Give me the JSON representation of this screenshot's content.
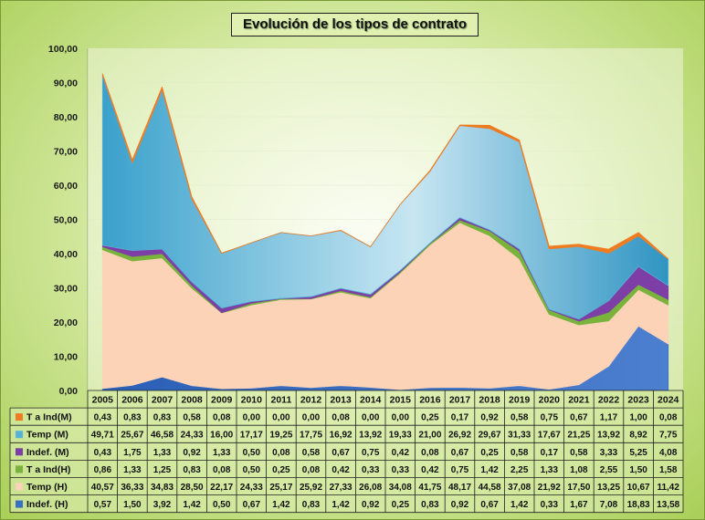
{
  "chart_data": {
    "type": "area",
    "stacked": true,
    "title": "Evolución de los tipos de contrato",
    "ylim": [
      0,
      100
    ],
    "y_ticks": [
      "0,00",
      "10,00",
      "20,00",
      "30,00",
      "40,00",
      "50,00",
      "60,00",
      "70,00",
      "80,00",
      "90,00",
      "100,00"
    ],
    "categories": [
      "2005",
      "2006",
      "2007",
      "2008",
      "2009",
      "2010",
      "2011",
      "2012",
      "2013",
      "2014",
      "2015",
      "2016",
      "2017",
      "2018",
      "2019",
      "2020",
      "2021",
      "2022",
      "2023",
      "2024"
    ],
    "series": [
      {
        "name": "Indef. (H)",
        "color": "#3a6fc4",
        "values": [
          0.57,
          1.5,
          3.92,
          1.42,
          0.5,
          0.67,
          1.42,
          0.83,
          1.42,
          0.92,
          0.25,
          0.83,
          0.92,
          0.67,
          1.42,
          0.33,
          1.67,
          7.08,
          18.83,
          13.58
        ],
        "labels": [
          "0,57",
          "1,50",
          "3,92",
          "1,42",
          "0,50",
          "0,67",
          "1,42",
          "0,83",
          "1,42",
          "0,92",
          "0,25",
          "0,83",
          "0,92",
          "0,67",
          "1,42",
          "0,33",
          "1,67",
          "7,08",
          "18,83",
          "13,58"
        ]
      },
      {
        "name": "Temp (H)",
        "color": "#fcd3b6",
        "values": [
          40.57,
          36.33,
          34.83,
          28.5,
          22.17,
          24.33,
          25.17,
          25.92,
          27.33,
          26.08,
          34.08,
          41.75,
          48.17,
          44.58,
          37.08,
          21.92,
          17.5,
          13.25,
          10.67,
          11.42
        ],
        "labels": [
          "40,57",
          "36,33",
          "34,83",
          "28,50",
          "22,17",
          "24,33",
          "25,17",
          "25,92",
          "27,33",
          "26,08",
          "34,08",
          "41,75",
          "48,17",
          "44,58",
          "37,08",
          "21,92",
          "17,50",
          "13,25",
          "10,67",
          "11,42"
        ]
      },
      {
        "name": "T a Ind(H)",
        "color": "#7ab33c",
        "values": [
          0.86,
          1.33,
          1.25,
          0.83,
          0.08,
          0.5,
          0.25,
          0.08,
          0.42,
          0.33,
          0.33,
          0.42,
          0.75,
          1.42,
          2.25,
          1.33,
          1.08,
          2.55,
          1.5,
          1.58
        ],
        "labels": [
          "0,86",
          "1,33",
          "1,25",
          "0,83",
          "0,08",
          "0,50",
          "0,25",
          "0,08",
          "0,42",
          "0,33",
          "0,33",
          "0,42",
          "0,75",
          "1,42",
          "2,25",
          "1,33",
          "1,08",
          "2,55",
          "1,50",
          "1,58"
        ]
      },
      {
        "name": "Indef. (M)",
        "color": "#7d3fa6",
        "values": [
          0.43,
          1.75,
          1.33,
          0.92,
          1.33,
          0.5,
          0.08,
          0.58,
          0.67,
          0.75,
          0.42,
          0.08,
          0.67,
          0.25,
          0.58,
          0.17,
          0.58,
          3.33,
          5.25,
          4.08
        ],
        "labels": [
          "0,43",
          "1,75",
          "1,33",
          "0,92",
          "1,33",
          "0,50",
          "0,08",
          "0,58",
          "0,67",
          "0,75",
          "0,42",
          "0,08",
          "0,67",
          "0,25",
          "0,58",
          "0,17",
          "0,58",
          "3,33",
          "5,25",
          "4,08"
        ]
      },
      {
        "name": "Temp (M)",
        "color": "#56b2d6",
        "values": [
          49.71,
          25.67,
          46.58,
          24.33,
          16.0,
          17.17,
          19.25,
          17.75,
          16.92,
          13.92,
          19.33,
          21.0,
          26.92,
          29.67,
          31.33,
          17.67,
          21.25,
          13.92,
          8.92,
          7.75
        ],
        "labels": [
          "49,71",
          "25,67",
          "46,58",
          "24,33",
          "16,00",
          "17,17",
          "19,25",
          "17,75",
          "16,92",
          "13,92",
          "19,33",
          "21,00",
          "26,92",
          "29,67",
          "31,33",
          "17,67",
          "21,25",
          "13,92",
          "8,92",
          "7,75"
        ]
      },
      {
        "name": "T a Ind(M)",
        "color": "#f07c22",
        "values": [
          0.43,
          0.83,
          0.83,
          0.58,
          0.08,
          0.0,
          0.0,
          0.0,
          0.08,
          0.0,
          0.0,
          0.25,
          0.17,
          0.92,
          0.58,
          0.75,
          0.67,
          1.17,
          1.0,
          0.08
        ],
        "labels": [
          "0,43",
          "0,83",
          "0,83",
          "0,58",
          "0,08",
          "0,00",
          "0,00",
          "0,00",
          "0,08",
          "0,00",
          "0,00",
          "0,25",
          "0,17",
          "0,92",
          "0,58",
          "0,75",
          "0,67",
          "1,17",
          "1,00",
          "0,08"
        ]
      }
    ],
    "legend": "data-table-below"
  }
}
